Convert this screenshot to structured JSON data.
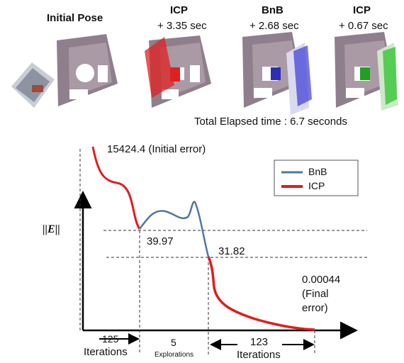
{
  "stages": [
    {
      "title": "Initial Pose",
      "time": ""
    },
    {
      "title": "ICP",
      "time": "+ 3.35 sec"
    },
    {
      "title": "BnB",
      "time": "+ 2.68 sec"
    },
    {
      "title": "ICP",
      "time": "+ 0.67 sec"
    }
  ],
  "total_time": "Total Elapsed time : 6.7 seconds",
  "plot": {
    "ylabel": "||E||",
    "initial_error": "15424.4 (Initial error)",
    "value_1": "39.97",
    "value_2": "31.82",
    "final_value": "0.00044",
    "final_line1": "(Final",
    "final_line2": "error)",
    "legend": [
      {
        "name": "BnB",
        "color": "#4f77a8"
      },
      {
        "name": "ICP",
        "color": "#e31b1b"
      }
    ],
    "seg1_count": "125",
    "seg1_unit": "Iterations",
    "seg2_count": "5",
    "seg2_unit": "Explorations",
    "seg3_count": "123",
    "seg3_unit": "Iterations"
  }
}
